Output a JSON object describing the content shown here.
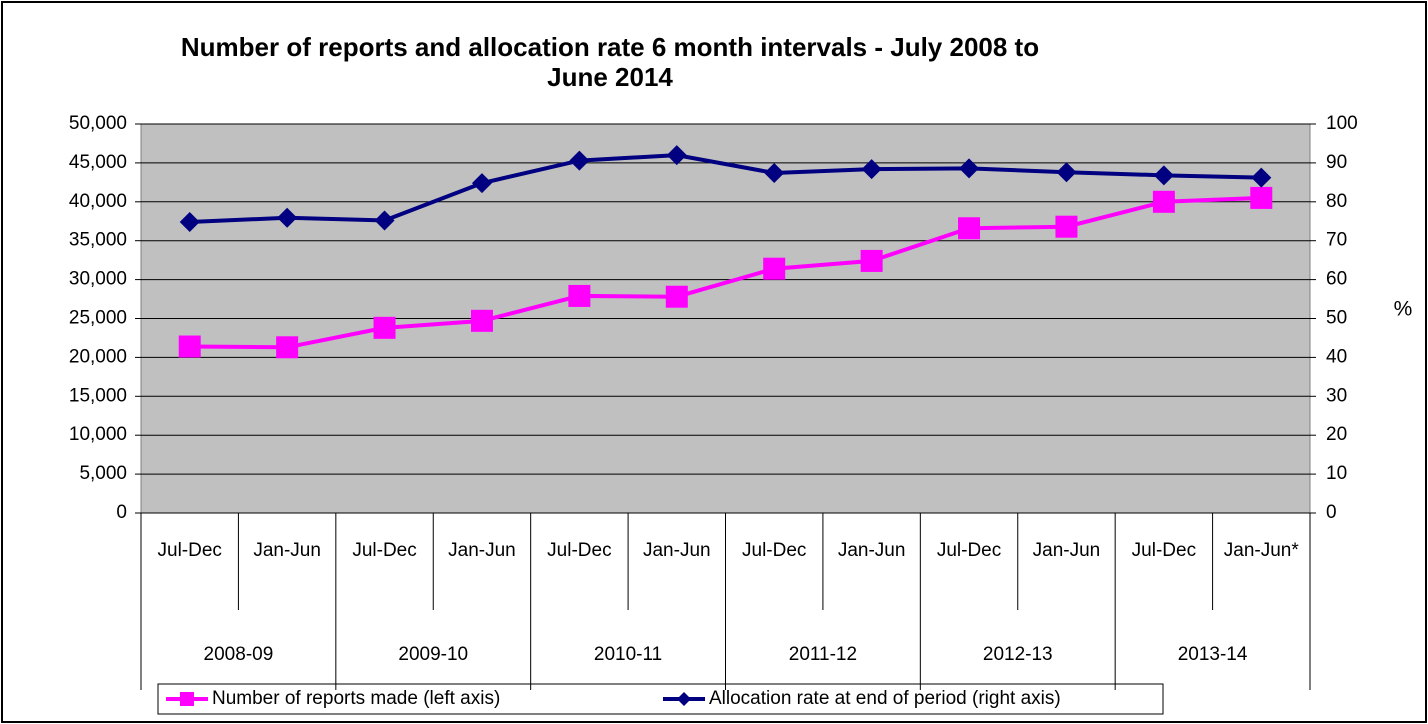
{
  "chart_data": {
    "type": "line",
    "title": "Number of reports and allocation rate 6 month intervals - July 2008 to June 2014",
    "categories": [
      "Jul-Dec",
      "Jan-Jun",
      "Jul-Dec",
      "Jan-Jun",
      "Jul-Dec",
      "Jan-Jun",
      "Jul-Dec",
      "Jan-Jun",
      "Jul-Dec",
      "Jan-Jun",
      "Jul-Dec",
      "Jan-Jun*"
    ],
    "groups": [
      "2008-09",
      "2009-10",
      "2010-11",
      "2011-12",
      "2012-13",
      "2013-14"
    ],
    "series": [
      {
        "name": "Number of reports made (left axis)",
        "color": "#ff00ff",
        "marker": "square",
        "values": [
          21400,
          21300,
          23800,
          24700,
          27900,
          27800,
          31400,
          32400,
          36600,
          36800,
          40000,
          40500
        ]
      },
      {
        "name": "Allocation rate at end of period (right axis)",
        "color": "#000080",
        "marker": "diamond",
        "axis": "y2",
        "values": [
          74.8,
          75.9,
          75.2,
          84.8,
          90.6,
          92.0,
          87.4,
          88.4,
          88.6,
          87.6,
          86.8,
          86.2
        ]
      }
    ],
    "ylim": [
      0,
      50000
    ],
    "yticks": [
      0,
      {
        "value": 5000,
        "label": "5,000"
      },
      {
        "value": 10000,
        "label": "10,000"
      },
      {
        "value": 15000,
        "label": "15,000"
      },
      {
        "value": 20000,
        "label": "20,000"
      },
      {
        "value": 25000,
        "label": "25,000"
      },
      {
        "value": 30000,
        "label": "30,000"
      },
      {
        "value": 35000,
        "label": "35,000"
      },
      {
        "value": 40000,
        "label": "40,000"
      },
      {
        "value": 45000,
        "label": "45,000"
      },
      {
        "value": 50000,
        "label": "50,000"
      }
    ],
    "y2lim": [
      0,
      100
    ],
    "y2ticks": [
      0,
      10,
      20,
      30,
      40,
      50,
      60,
      70,
      80,
      90,
      100
    ],
    "y2label": "%",
    "grid": true,
    "legend": "bottom"
  }
}
